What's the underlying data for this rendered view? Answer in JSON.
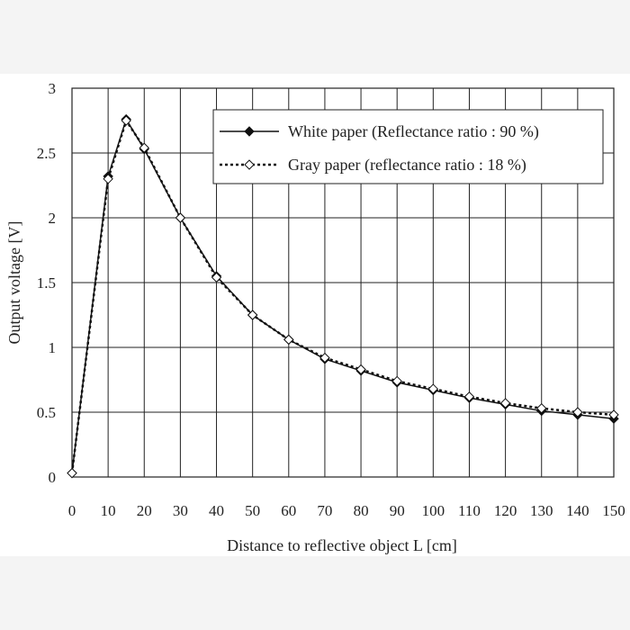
{
  "chart_data": {
    "type": "line",
    "title": "",
    "xlabel": "Distance to reflective object L [cm]",
    "ylabel": "Output voltage [V]",
    "xlim": [
      0,
      150
    ],
    "ylim": [
      0,
      3
    ],
    "xticks": [
      0,
      10,
      20,
      30,
      40,
      50,
      60,
      70,
      80,
      90,
      100,
      110,
      120,
      130,
      140,
      150
    ],
    "yticks": [
      0,
      0.5,
      1,
      1.5,
      2,
      2.5,
      3
    ],
    "ytick_labels": [
      "0",
      "0.5",
      "1",
      "1.5",
      "2",
      "2.5",
      "3"
    ],
    "grid": true,
    "legend_position": "top-right",
    "series": [
      {
        "name": "White paper (Reflectance ratio : 90 %)",
        "style": "solid",
        "marker": "filled-diamond",
        "color": "#111111",
        "x": [
          0,
          10,
          15,
          20,
          30,
          40,
          50,
          60,
          70,
          80,
          90,
          100,
          110,
          120,
          130,
          140,
          150
        ],
        "y": [
          0.03,
          2.32,
          2.76,
          2.53,
          2.0,
          1.55,
          1.25,
          1.06,
          0.91,
          0.82,
          0.73,
          0.67,
          0.61,
          0.56,
          0.51,
          0.48,
          0.45
        ]
      },
      {
        "name": "Gray paper (reflectance ratio : 18 %)",
        "style": "dotted",
        "marker": "open-diamond",
        "color": "#111111",
        "x": [
          0,
          10,
          15,
          20,
          30,
          40,
          50,
          60,
          70,
          80,
          90,
          100,
          110,
          120,
          130,
          140,
          150
        ],
        "y": [
          0.03,
          2.3,
          2.75,
          2.54,
          2.0,
          1.54,
          1.25,
          1.06,
          0.92,
          0.83,
          0.74,
          0.68,
          0.62,
          0.57,
          0.53,
          0.5,
          0.48
        ]
      }
    ]
  }
}
